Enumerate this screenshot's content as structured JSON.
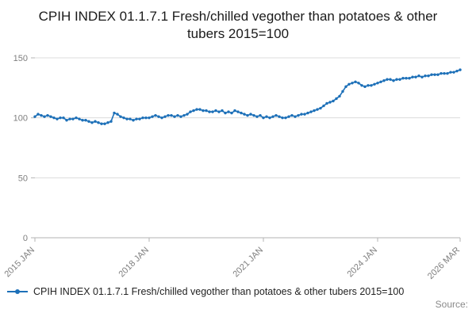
{
  "title": "CPIH INDEX 01.1.7.1 Fresh/chilled vegother than potatoes & other tubers 2015=100",
  "legend": {
    "label": "CPIH INDEX 01.1.7.1 Fresh/chilled vegother than potatoes & other tubers 2015=100"
  },
  "footer": {
    "source_label": "Source:"
  },
  "chart_data": {
    "type": "line",
    "title": "CPIH INDEX 01.1.7.1 Fresh/chilled vegother than potatoes & other tubers 2015=100",
    "xlabel": "",
    "ylabel": "",
    "x_start": "2015 JAN",
    "x_end": "2026 MAR",
    "x_tick_labels": [
      "2015 JAN",
      "2018 JAN",
      "2021 JAN",
      "2024 JAN",
      "2026 MAR"
    ],
    "x_tick_month_index": [
      0,
      36,
      72,
      108,
      134
    ],
    "y_ticks": [
      0,
      50,
      100,
      150
    ],
    "ylim": [
      0,
      150
    ],
    "grid": true,
    "legend_position": "bottom",
    "line_color": "#1d70b8",
    "axis_color": "#b3b3b3",
    "grid_color": "#dcdcdc",
    "tick_label_color": "#7f7f7f",
    "series": [
      {
        "name": "CPIH INDEX 01.1.7.1 Fresh/chilled vegother than potatoes & other tubers 2015=100",
        "frequency": "monthly",
        "values": [
          101,
          103,
          102,
          101,
          102,
          101,
          100,
          99,
          100,
          100,
          98,
          99,
          99,
          100,
          99,
          98,
          98,
          97,
          96,
          97,
          96,
          95,
          95,
          96,
          97,
          104,
          103,
          101,
          100,
          99,
          99,
          98,
          99,
          99,
          100,
          100,
          100,
          101,
          102,
          101,
          100,
          101,
          102,
          102,
          101,
          102,
          101,
          102,
          103,
          105,
          106,
          107,
          107,
          106,
          106,
          105,
          105,
          106,
          105,
          106,
          104,
          105,
          104,
          106,
          105,
          104,
          103,
          102,
          103,
          102,
          101,
          102,
          100,
          101,
          100,
          101,
          102,
          101,
          100,
          100,
          101,
          102,
          101,
          102,
          103,
          103,
          104,
          105,
          106,
          107,
          108,
          110,
          112,
          113,
          114,
          116,
          118,
          122,
          126,
          128,
          129,
          130,
          129,
          127,
          126,
          127,
          127,
          128,
          129,
          130,
          131,
          132,
          132,
          131,
          132,
          132,
          133,
          133,
          133,
          134,
          134,
          135,
          134,
          135,
          135,
          136,
          136,
          136,
          137,
          137,
          137,
          138,
          138,
          139,
          140
        ]
      }
    ]
  }
}
